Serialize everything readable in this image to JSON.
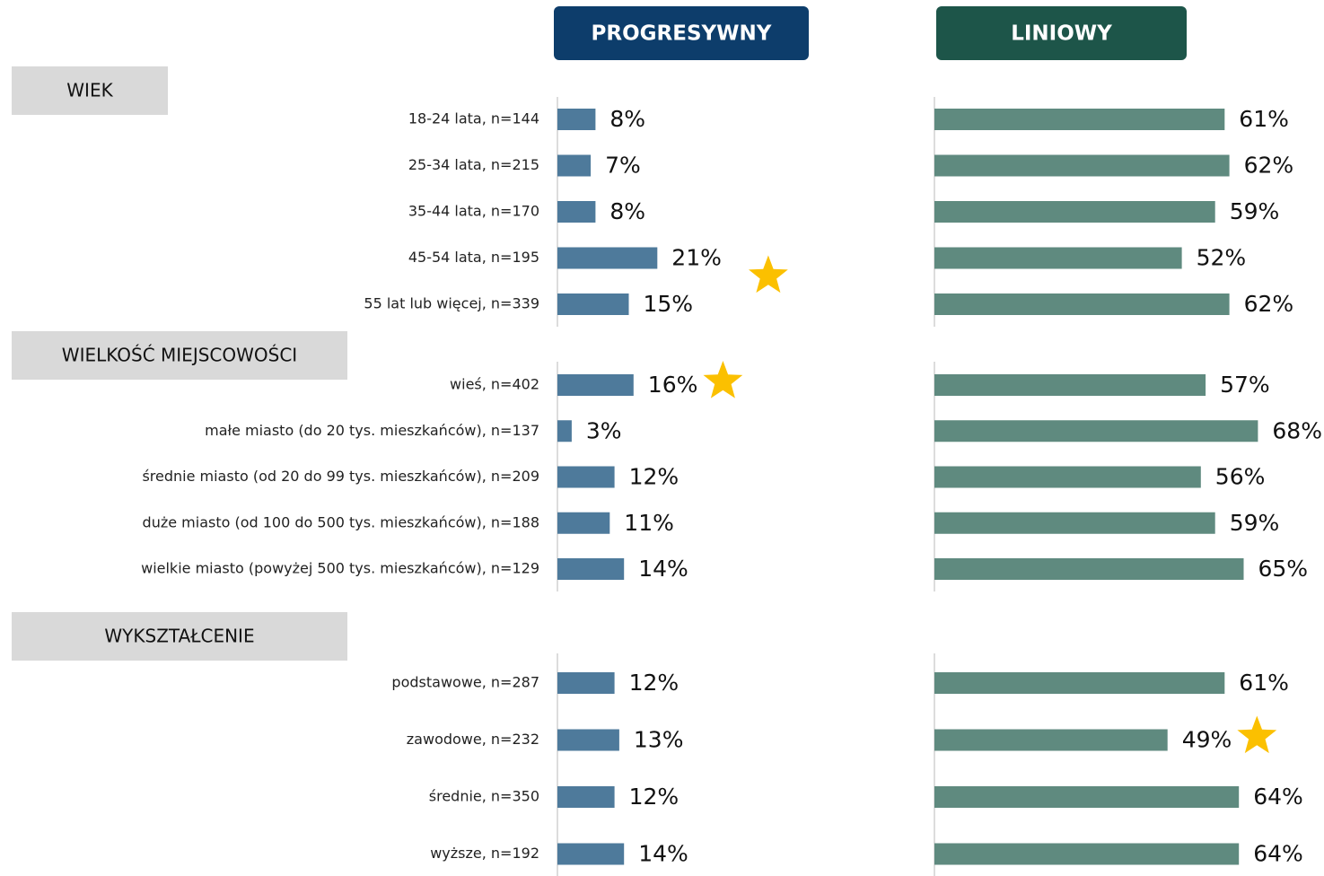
{
  "chart_data": {
    "type": "bar",
    "series": [
      {
        "name": "PROGRESYWNY",
        "color": "#4e7a9b",
        "header_color": "#0d3d6b"
      },
      {
        "name": "LINIOWY",
        "color": "#5f8a7f",
        "header_color": "#1d5549"
      }
    ],
    "groups": [
      {
        "title": "WIEK",
        "categories": [
          "18-24 lata, n=144",
          "25-34 lata, n=215",
          "35-44 lata, n=170",
          "45-54 lata, n=195",
          "55 lat lub więcej, n=339"
        ],
        "values": [
          [
            8,
            7,
            8,
            21,
            15
          ],
          [
            61,
            62,
            59,
            52,
            62
          ]
        ],
        "value_labels": [
          [
            "8%",
            "7%",
            "8%",
            "21%",
            "15%"
          ],
          [
            "61%",
            "62%",
            "59%",
            "52%",
            "62%"
          ]
        ],
        "starred": [
          [
            false,
            false,
            false,
            true,
            false
          ],
          [
            false,
            false,
            false,
            false,
            false
          ]
        ]
      },
      {
        "title": "WIELKOŚĆ MIEJSCOWOŚCI",
        "categories": [
          "wieś, n=402",
          "małe miasto (do 20 tys. mieszkańców), n=137",
          "średnie miasto (od 20 do 99 tys. mieszkańców), n=209",
          "duże miasto (od 100 do 500 tys. mieszkańców), n=188",
          "wielkie miasto (powyżej 500 tys. mieszkańców), n=129"
        ],
        "values": [
          [
            16,
            3,
            12,
            11,
            14
          ],
          [
            57,
            68,
            56,
            59,
            65
          ]
        ],
        "value_labels": [
          [
            "16%",
            "3%",
            "12%",
            "11%",
            "14%"
          ],
          [
            "57%",
            "68%",
            "56%",
            "59%",
            "65%"
          ]
        ],
        "starred": [
          [
            true,
            false,
            false,
            false,
            false
          ],
          [
            false,
            false,
            false,
            false,
            false
          ]
        ]
      },
      {
        "title": "WYKSZTAŁCENIE",
        "categories": [
          "podstawowe, n=287",
          "zawodowe, n=232",
          "średnie, n=350",
          "wyższe, n=192"
        ],
        "values": [
          [
            12,
            13,
            12,
            14
          ],
          [
            61,
            49,
            64,
            64
          ]
        ],
        "value_labels": [
          [
            "12%",
            "13%",
            "12%",
            "14%"
          ],
          [
            "61%",
            "49%",
            "64%",
            "64%"
          ]
        ],
        "starred": [
          [
            false,
            false,
            false,
            false
          ],
          [
            false,
            true,
            false,
            false
          ]
        ]
      }
    ]
  }
}
